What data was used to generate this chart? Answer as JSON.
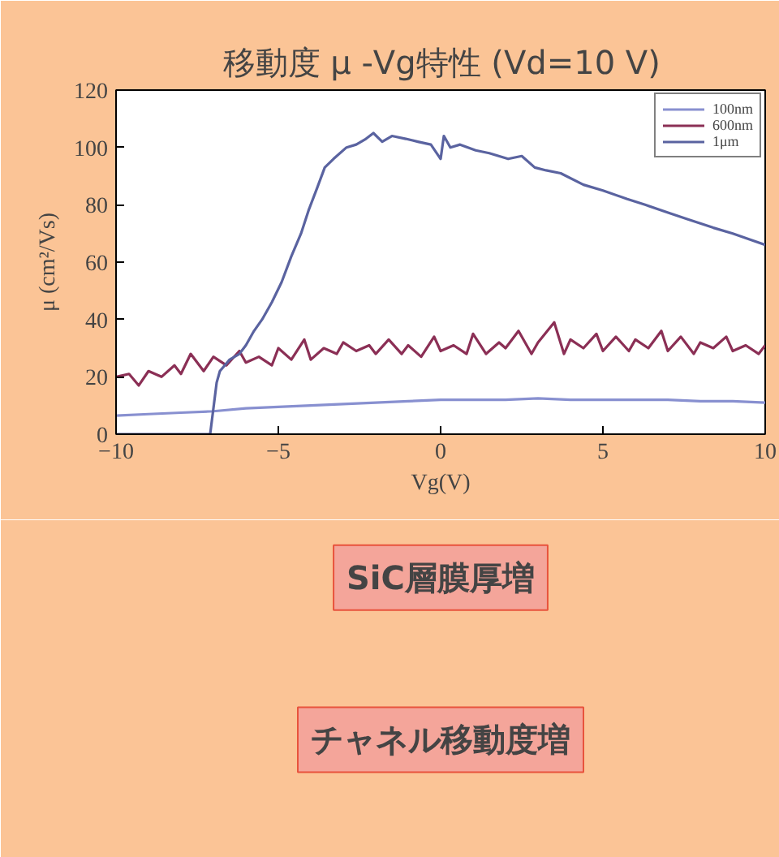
{
  "chart_data": {
    "type": "line",
    "title": "移動度 μ -Vg特性 (Vd=10 V)",
    "xlabel": "Vg(V)",
    "ylabel": "μ (cm²/Vs)",
    "xlim": [
      -10,
      10
    ],
    "ylim": [
      0,
      120
    ],
    "xticks": [
      -10,
      -5,
      0,
      5,
      10
    ],
    "yticks": [
      0,
      20,
      40,
      60,
      80,
      100,
      120
    ],
    "grid": false,
    "legend": "top right",
    "marker": "none",
    "line_style": "solid",
    "series": [
      {
        "name": "100nm",
        "color": "#8890d0",
        "x": [
          -10,
          -9,
          -8,
          -7,
          -6,
          -5,
          -4,
          -3,
          -2,
          -1,
          0,
          1,
          2,
          3,
          4,
          5,
          6,
          7,
          8,
          9,
          10
        ],
        "values": [
          6.5,
          7,
          7.5,
          8,
          9,
          9.5,
          10,
          10.5,
          11,
          11.5,
          12,
          12,
          12,
          12.5,
          12,
          12,
          12,
          12,
          11.5,
          11.5,
          11
        ]
      },
      {
        "name": "600nm",
        "color": "#8b2f55",
        "x": [
          -10,
          -9.6,
          -9.3,
          -9,
          -8.6,
          -8.2,
          -8,
          -7.7,
          -7.3,
          -7,
          -6.6,
          -6.2,
          -6,
          -5.6,
          -5.2,
          -5,
          -4.6,
          -4.2,
          -4,
          -3.6,
          -3.2,
          -3,
          -2.6,
          -2.2,
          -2,
          -1.6,
          -1.2,
          -1,
          -0.6,
          -0.2,
          0,
          0.4,
          0.8,
          1,
          1.4,
          1.8,
          2,
          2.4,
          2.8,
          3,
          3.5,
          3.8,
          4,
          4.4,
          4.8,
          5,
          5.4,
          5.8,
          6,
          6.4,
          6.8,
          7,
          7.4,
          7.8,
          8,
          8.4,
          8.8,
          9,
          9.4,
          9.8,
          10
        ],
        "values": [
          20,
          21,
          17,
          22,
          20,
          24,
          21,
          28,
          22,
          27,
          24,
          29,
          25,
          27,
          24,
          30,
          26,
          33,
          26,
          30,
          28,
          32,
          29,
          31,
          28,
          33,
          28,
          31,
          27,
          34,
          29,
          31,
          28,
          35,
          28,
          32,
          30,
          36,
          28,
          32,
          39,
          28,
          33,
          30,
          35,
          29,
          34,
          29,
          33,
          30,
          36,
          29,
          34,
          28,
          32,
          30,
          34,
          29,
          31,
          28,
          31
        ]
      },
      {
        "name": "1μm",
        "color": "#5a63a0",
        "x": [
          -10,
          -9,
          -8,
          -7.1,
          -6.9,
          -6.8,
          -6.5,
          -6.2,
          -6,
          -5.75,
          -5.5,
          -5.2,
          -4.9,
          -4.6,
          -4.3,
          -4.07,
          -3.8,
          -3.57,
          -3.3,
          -2.9,
          -2.6,
          -2.3,
          -2.07,
          -1.8,
          -1.5,
          -1.07,
          -0.7,
          -0.3,
          0,
          0.1,
          0.3,
          0.6,
          1.08,
          1.5,
          2.08,
          2.5,
          2.9,
          3.25,
          3.7,
          4.4,
          5,
          5.75,
          6.3,
          7.08,
          7.6,
          8.4,
          9,
          9.5,
          10
        ],
        "values": [
          0,
          0,
          0,
          0,
          18,
          22,
          26,
          28,
          31,
          36,
          40,
          46,
          53,
          62,
          70,
          78,
          86,
          93,
          96,
          100,
          101,
          103,
          105,
          102,
          104,
          103,
          102,
          101,
          96,
          104,
          100,
          101,
          99,
          98,
          96,
          97,
          93,
          92,
          91,
          87,
          85,
          82,
          80,
          77,
          75,
          72,
          70,
          68,
          66
        ]
      }
    ],
    "annotations": [
      "SiC層膜厚増",
      "チャネル移動度増"
    ]
  }
}
